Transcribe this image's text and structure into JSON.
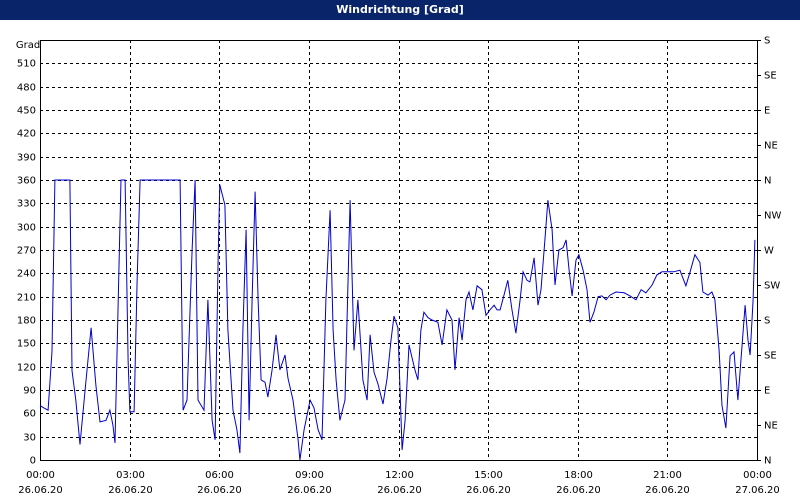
{
  "chart_data": {
    "type": "line",
    "title": "Windrichtung [Grad]",
    "ylabel": "Grad",
    "color": "#0000cc",
    "grid": true,
    "x": [
      0,
      0.13,
      0.27,
      0.4,
      0.5,
      1.0,
      1.07,
      1.2,
      1.34,
      1.51,
      1.71,
      1.87,
      2.01,
      2.21,
      2.34,
      2.44,
      2.51,
      2.64,
      2.71,
      2.85,
      2.95,
      3.01,
      3.15,
      3.25,
      3.35,
      4.69,
      4.79,
      4.92,
      5.09,
      5.19,
      5.29,
      5.49,
      5.62,
      5.76,
      5.86,
      5.96,
      6.02,
      6.19,
      6.29,
      6.46,
      6.59,
      6.69,
      6.79,
      6.9,
      7.0,
      7.1,
      7.2,
      7.3,
      7.4,
      7.53,
      7.63,
      7.77,
      7.9,
      8.03,
      8.2,
      8.3,
      8.47,
      8.64,
      8.7,
      8.84,
      9.04,
      9.17,
      9.31,
      9.44,
      9.57,
      9.71,
      9.81,
      9.91,
      10.04,
      10.21,
      10.38,
      10.51,
      10.64,
      10.81,
      10.95,
      11.05,
      11.18,
      11.31,
      11.48,
      11.62,
      11.75,
      11.85,
      11.98,
      12.12,
      12.22,
      12.35,
      12.55,
      12.65,
      12.75,
      12.85,
      12.99,
      13.12,
      13.32,
      13.46,
      13.62,
      13.79,
      13.89,
      14.03,
      14.13,
      14.26,
      14.36,
      14.49,
      14.63,
      14.79,
      14.93,
      15.06,
      15.2,
      15.3,
      15.4,
      15.53,
      15.66,
      15.8,
      15.93,
      16.07,
      16.17,
      16.3,
      16.4,
      16.54,
      16.67,
      16.77,
      16.9,
      17.0,
      17.14,
      17.24,
      17.37,
      17.51,
      17.61,
      17.71,
      17.81,
      17.94,
      18.04,
      18.18,
      18.31,
      18.41,
      18.54,
      18.68,
      18.81,
      18.95,
      19.08,
      19.28,
      19.55,
      19.75,
      19.95,
      20.12,
      20.28,
      20.49,
      20.65,
      20.82,
      21.02,
      21.22,
      21.42,
      21.62,
      21.76,
      21.92,
      22.09,
      22.19,
      22.36,
      22.49,
      22.59,
      22.73,
      22.83,
      22.96,
      23.1,
      23.23,
      23.36,
      23.5,
      23.6,
      23.7,
      23.77,
      23.87,
      23.93
    ],
    "values": [
      70,
      67,
      64,
      140,
      360,
      360,
      115,
      77,
      20,
      90,
      170,
      96,
      49,
      51,
      64,
      45,
      22,
      244,
      360,
      360,
      128,
      62,
      62,
      230,
      360,
      360,
      64,
      77,
      270,
      360,
      77,
      64,
      206,
      51,
      26,
      257,
      354,
      328,
      167,
      64,
      39,
      9,
      167,
      296,
      51,
      206,
      345,
      206,
      103,
      100,
      81,
      116,
      161,
      116,
      135,
      105,
      77,
      26,
      0,
      39,
      77,
      67,
      39,
      26,
      206,
      321,
      167,
      103,
      51,
      77,
      334,
      141,
      206,
      103,
      77,
      161,
      113,
      98,
      72,
      105,
      154,
      185,
      170,
      13,
      51,
      148,
      116,
      103,
      167,
      190,
      183,
      180,
      177,
      148,
      193,
      180,
      116,
      183,
      154,
      206,
      216,
      193,
      224,
      219,
      186,
      193,
      199,
      193,
      193,
      212,
      231,
      193,
      163,
      206,
      242,
      231,
      229,
      260,
      199,
      219,
      283,
      334,
      296,
      225,
      270,
      273,
      283,
      244,
      211,
      257,
      264,
      244,
      219,
      177,
      190,
      210,
      211,
      206,
      212,
      216,
      215,
      211,
      206,
      219,
      215,
      225,
      238,
      242,
      242,
      242,
      244,
      224,
      242,
      264,
      254,
      216,
      212,
      216,
      206,
      141,
      70,
      41,
      134,
      139,
      77,
      148,
      199,
      154,
      135,
      206,
      283
    ],
    "xlim": [
      0,
      24
    ],
    "xticks": [
      {
        "value": 0,
        "label": "00:00",
        "date": "26.06.20"
      },
      {
        "value": 3,
        "label": "03:00",
        "date": "26.06.20"
      },
      {
        "value": 6,
        "label": "06:00",
        "date": "26.06.20"
      },
      {
        "value": 9,
        "label": "09:00",
        "date": "26.06.20"
      },
      {
        "value": 12,
        "label": "12:00",
        "date": "26.06.20"
      },
      {
        "value": 15,
        "label": "15:00",
        "date": "26.06.20"
      },
      {
        "value": 18,
        "label": "18:00",
        "date": "26.06.20"
      },
      {
        "value": 21,
        "label": "21:00",
        "date": "26.06.20"
      },
      {
        "value": 24,
        "label": "00:00",
        "date": "27.06.20"
      }
    ],
    "ylim": [
      0,
      540
    ],
    "yticks": [
      0,
      30,
      60,
      90,
      120,
      150,
      180,
      210,
      240,
      270,
      300,
      330,
      360,
      390,
      420,
      450,
      480,
      510
    ],
    "y2lim": [
      0,
      540
    ],
    "y2ticks": [
      {
        "value": 0,
        "label": "N"
      },
      {
        "value": 45,
        "label": "NE"
      },
      {
        "value": 90,
        "label": "E"
      },
      {
        "value": 135,
        "label": "SE"
      },
      {
        "value": 180,
        "label": "S"
      },
      {
        "value": 225,
        "label": "SW"
      },
      {
        "value": 270,
        "label": "W"
      },
      {
        "value": 315,
        "label": "NW"
      },
      {
        "value": 360,
        "label": "N"
      },
      {
        "value": 405,
        "label": "NE"
      },
      {
        "value": 450,
        "label": "E"
      },
      {
        "value": 495,
        "label": "SE"
      },
      {
        "value": 540,
        "label": "S"
      }
    ]
  }
}
